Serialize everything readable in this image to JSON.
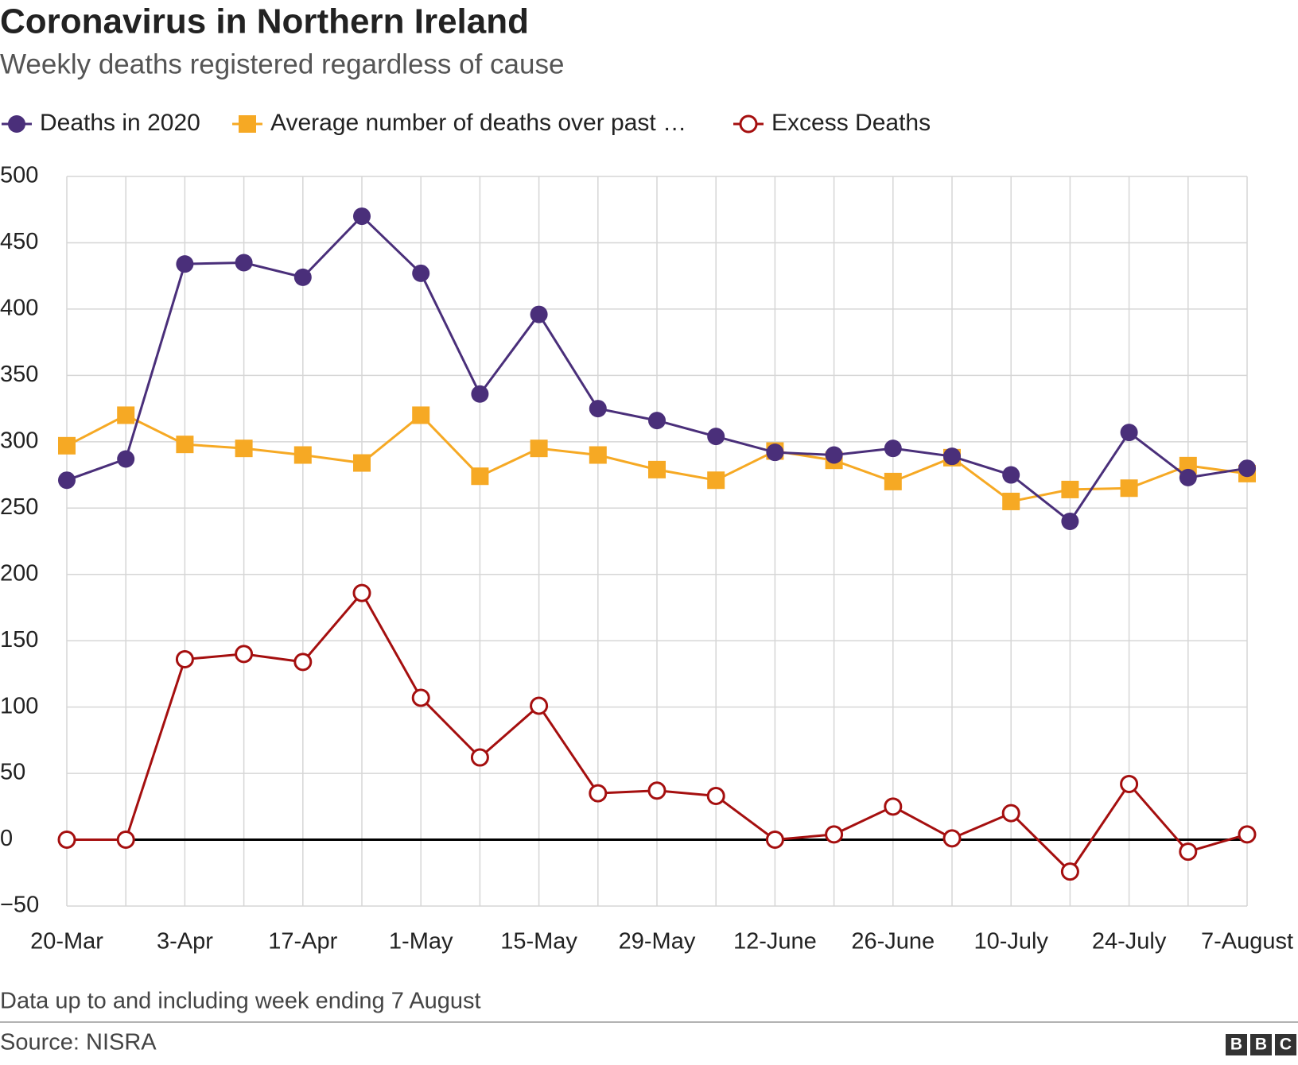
{
  "chart_data": {
    "type": "line",
    "title": "Coronavirus in Northern Ireland",
    "subtitle": "Weekly deaths registered regardless of cause",
    "note": "Data up to and including week ending 7 August",
    "source": "Source: NISRA",
    "logo": [
      "B",
      "B",
      "C"
    ],
    "categories": [
      "20-Mar",
      null,
      "3-Apr",
      null,
      "17-Apr",
      null,
      "1-May",
      null,
      "15-May",
      null,
      "29-May",
      null,
      "12-June",
      null,
      "26-June",
      null,
      "10-July",
      null,
      "24-July",
      null,
      "7-August"
    ],
    "series": [
      {
        "name": "Deaths in 2020",
        "color": "#4a2f7a",
        "marker": "circle",
        "values": [
          271,
          287,
          434,
          435,
          424,
          470,
          427,
          336,
          396,
          325,
          316,
          304,
          292,
          290,
          295,
          289,
          275,
          240,
          307,
          273,
          280
        ]
      },
      {
        "name": "Average number of deaths over past …",
        "color": "#f6a924",
        "marker": "square",
        "values": [
          297,
          320,
          298,
          295,
          290,
          284,
          320,
          274,
          295,
          290,
          279,
          271,
          293,
          286,
          270,
          288,
          255,
          264,
          265,
          282,
          276
        ]
      },
      {
        "name": "Excess Deaths",
        "color": "#a50f0f",
        "marker": "open-circle",
        "values": [
          0,
          0,
          136,
          140,
          134,
          186,
          107,
          62,
          101,
          35,
          37,
          33,
          0,
          4,
          25,
          1,
          20,
          -24,
          42,
          -9,
          4
        ]
      }
    ],
    "ylim": [
      -50,
      500
    ],
    "yticks": [
      {
        "value": -50,
        "label": "−50"
      },
      0,
      50,
      100,
      150,
      200,
      250,
      300,
      350,
      400,
      450,
      500
    ],
    "grid": true
  }
}
